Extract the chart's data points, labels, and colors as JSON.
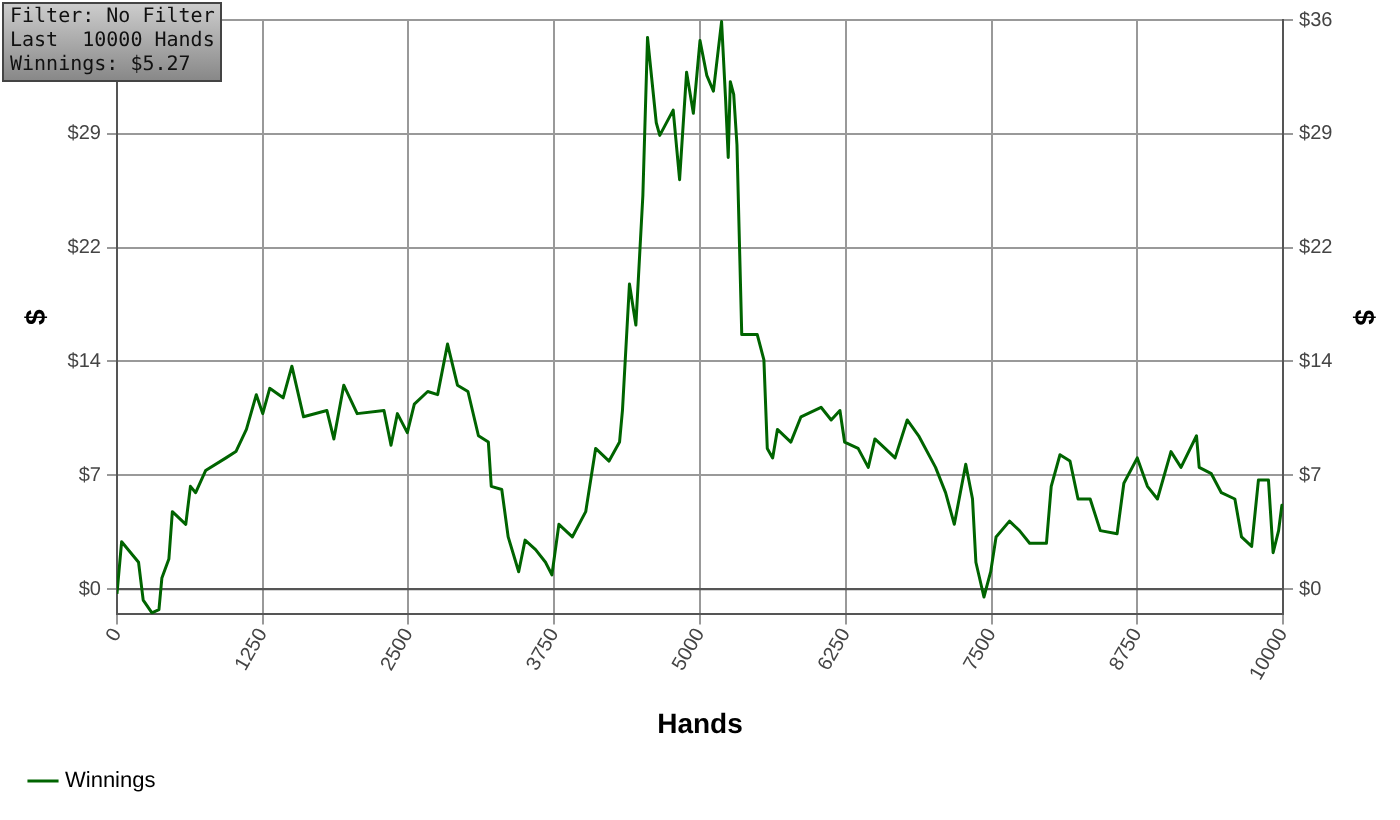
{
  "chart_data": {
    "type": "line",
    "xlabel": "Hands",
    "ylabel": "$",
    "y2label": "$",
    "annotations": [
      "Filter: No Filter",
      "Last  10000 Hands",
      "Winnings: $5.27"
    ],
    "xlim": [
      0,
      10000
    ],
    "xticks": [
      0,
      1250,
      2500,
      3750,
      5000,
      6250,
      7500,
      8750,
      10000
    ],
    "ylim": [
      -1.6,
      36
    ],
    "yticks": [
      {
        "value": 0,
        "label": "$0"
      },
      {
        "value": 7.2,
        "label": "$7"
      },
      {
        "value": 14.4,
        "label": "$14"
      },
      {
        "value": 21.6,
        "label": "$22"
      },
      {
        "value": 28.8,
        "label": "$29"
      },
      {
        "value": 36,
        "label": null
      }
    ],
    "y2lim": [
      -1.6,
      36
    ],
    "y2ticks": [
      {
        "value": 0,
        "label": "$0"
      },
      {
        "value": 7.2,
        "label": "$7"
      },
      {
        "value": 14.4,
        "label": "$14"
      },
      {
        "value": 21.6,
        "label": "$22"
      },
      {
        "value": 28.8,
        "label": "$29"
      },
      {
        "value": 36,
        "label": "$36"
      }
    ],
    "ref_lines": [
      {
        "axis": "y",
        "value": 0,
        "color": "#555555",
        "line_style": "solid"
      }
    ],
    "grid": true,
    "legend": "bottom left",
    "marker": "none",
    "line_style": "solid",
    "series": [
      {
        "name": "Winnings",
        "color": "#006400",
        "x": [
          0,
          40,
          185,
          225,
          300,
          360,
          385,
          445,
          475,
          590,
          630,
          675,
          760,
          935,
          1020,
          1110,
          1195,
          1250,
          1310,
          1425,
          1500,
          1600,
          1800,
          1860,
          1945,
          2060,
          2290,
          2350,
          2405,
          2490,
          2550,
          2665,
          2750,
          2835,
          2920,
          3010,
          3100,
          3185,
          3210,
          3300,
          3355,
          3445,
          3500,
          3590,
          3675,
          3730,
          3790,
          3905,
          4020,
          4105,
          4220,
          4310,
          4335,
          4395,
          4450,
          4510,
          4550,
          4625,
          4655,
          4770,
          4825,
          4885,
          4943,
          5000,
          5058,
          5115,
          5185,
          5220,
          5242,
          5260,
          5289,
          5317,
          5358,
          5491,
          5548,
          5577,
          5623,
          5664,
          5779,
          5866,
          6038,
          6125,
          6200,
          6240,
          6356,
          6443,
          6500,
          6587,
          6673,
          6777,
          6875,
          7020,
          7106,
          7181,
          7279,
          7337,
          7366,
          7435,
          7493,
          7539,
          7654,
          7740,
          7827,
          7971,
          8012,
          8087,
          8173,
          8242,
          8346,
          8433,
          8577,
          8635,
          8750,
          8837,
          8923,
          9039,
          9125,
          9258,
          9281,
          9385,
          9471,
          9587,
          9644,
          9731,
          9789,
          9875,
          9915,
          9962,
          9990,
          10000
        ],
        "values": [
          -0.3,
          3.0,
          1.7,
          -0.7,
          -1.5,
          -1.3,
          0.7,
          1.9,
          4.9,
          4.1,
          6.5,
          6.1,
          7.5,
          8.3,
          8.7,
          10.1,
          12.3,
          11.1,
          12.7,
          12.1,
          14.1,
          10.9,
          11.3,
          9.5,
          12.9,
          11.1,
          11.3,
          9.1,
          11.1,
          9.9,
          11.7,
          12.5,
          12.3,
          15.5,
          12.9,
          12.5,
          9.7,
          9.3,
          6.5,
          6.3,
          3.3,
          1.1,
          3.1,
          2.5,
          1.7,
          0.9,
          4.1,
          3.3,
          4.9,
          8.9,
          8.1,
          9.3,
          11.3,
          19.3,
          16.7,
          24.9,
          34.9,
          29.5,
          28.7,
          30.3,
          25.9,
          32.7,
          30.1,
          34.7,
          32.5,
          31.5,
          35.9,
          30.9,
          27.3,
          32.1,
          31.3,
          28.1,
          16.1,
          16.1,
          14.5,
          8.9,
          8.3,
          10.1,
          9.3,
          10.9,
          11.5,
          10.7,
          11.3,
          9.3,
          8.9,
          7.7,
          9.5,
          8.9,
          8.3,
          10.7,
          9.7,
          7.7,
          6.1,
          4.1,
          7.9,
          5.7,
          1.7,
          -0.5,
          1.1,
          3.3,
          4.3,
          3.7,
          2.9,
          2.9,
          6.5,
          8.5,
          8.1,
          5.7,
          5.7,
          3.7,
          3.5,
          6.7,
          8.3,
          6.5,
          5.7,
          8.7,
          7.7,
          9.7,
          7.7,
          7.3,
          6.1,
          5.7,
          3.3,
          2.7,
          6.9,
          6.9,
          2.3,
          3.7,
          5.3,
          5.3
        ]
      }
    ]
  }
}
